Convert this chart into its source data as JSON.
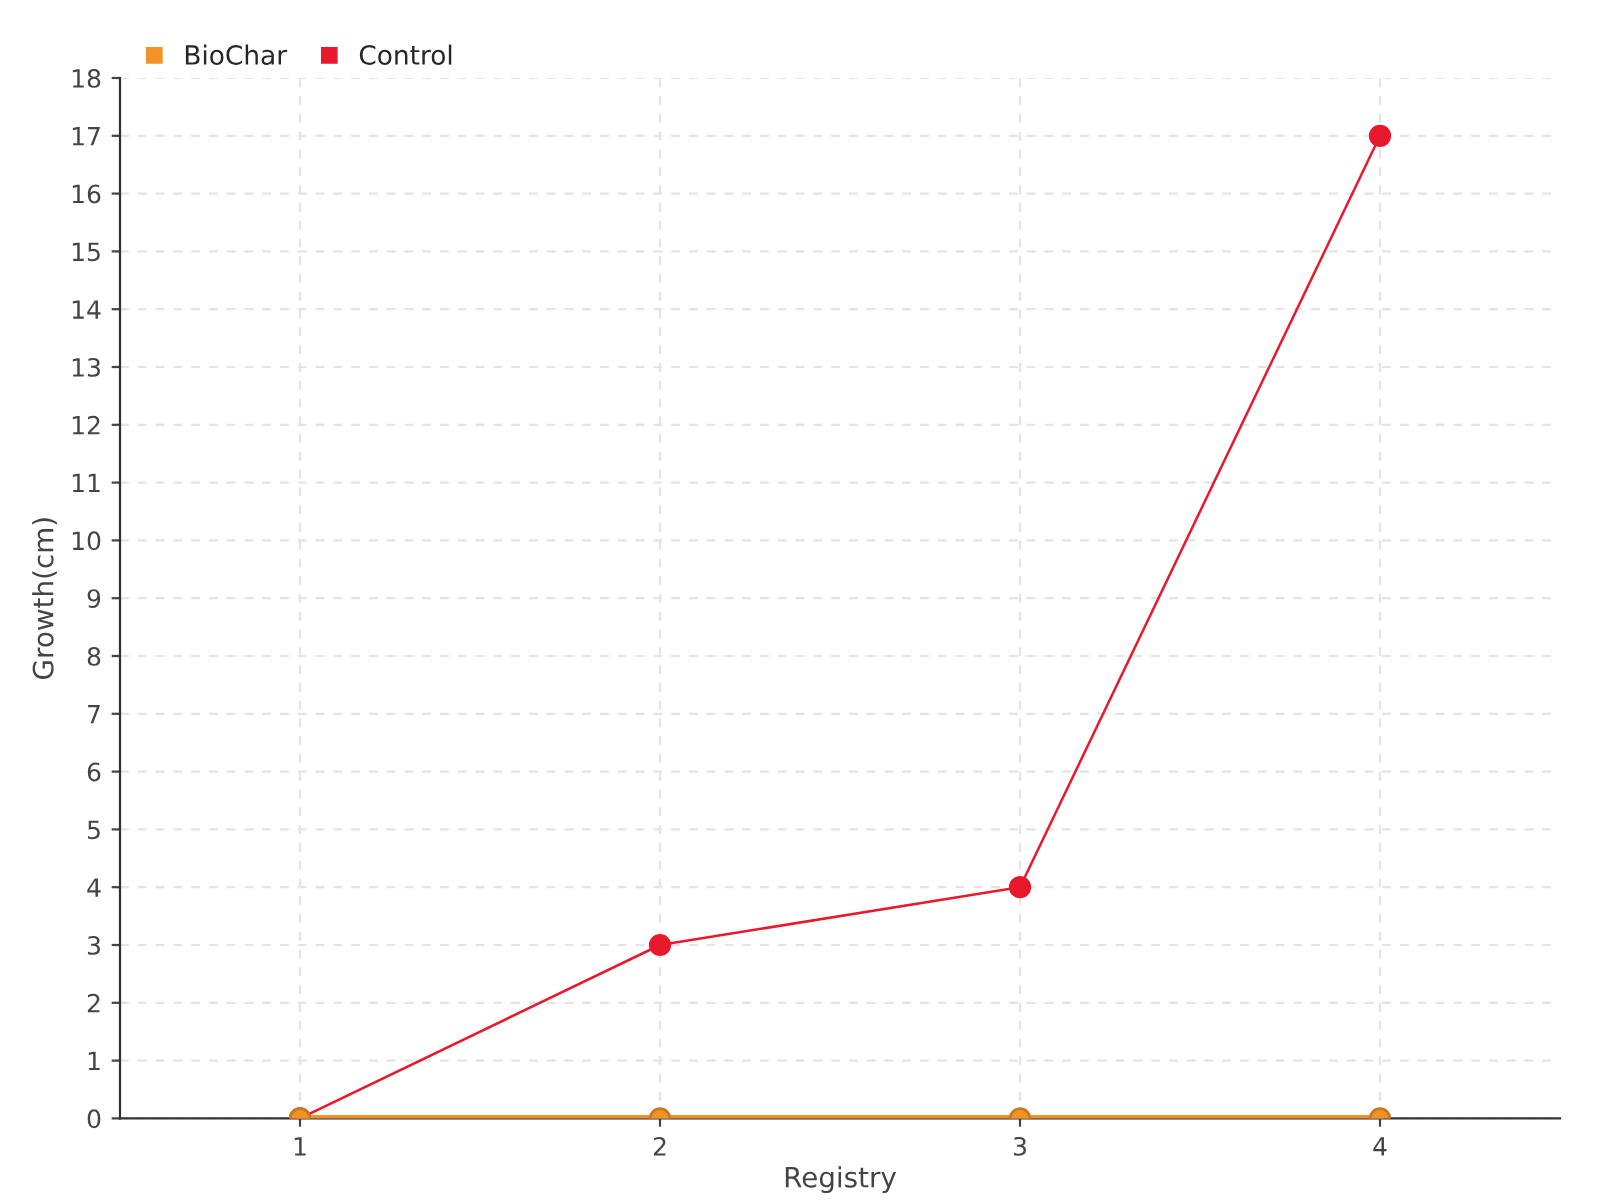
{
  "chart_data": {
    "type": "line",
    "xlabel": "Registry",
    "ylabel": "Growth(cm)",
    "categories": [
      "1",
      "2",
      "3",
      "4"
    ],
    "series": [
      {
        "name": "BioChar",
        "color": "#f39226",
        "values": [
          0,
          0,
          0,
          0
        ]
      },
      {
        "name": "Control",
        "color": "#e8192c",
        "values": [
          0,
          3,
          4,
          17
        ]
      }
    ],
    "ylim": [
      0,
      18
    ],
    "yticks": [
      0,
      1,
      2,
      3,
      4,
      5,
      6,
      7,
      8,
      9,
      10,
      11,
      12,
      13,
      14,
      15,
      16,
      17,
      18
    ],
    "grid": true,
    "legend": "top left",
    "marker": "circle",
    "line_style": "solid"
  }
}
